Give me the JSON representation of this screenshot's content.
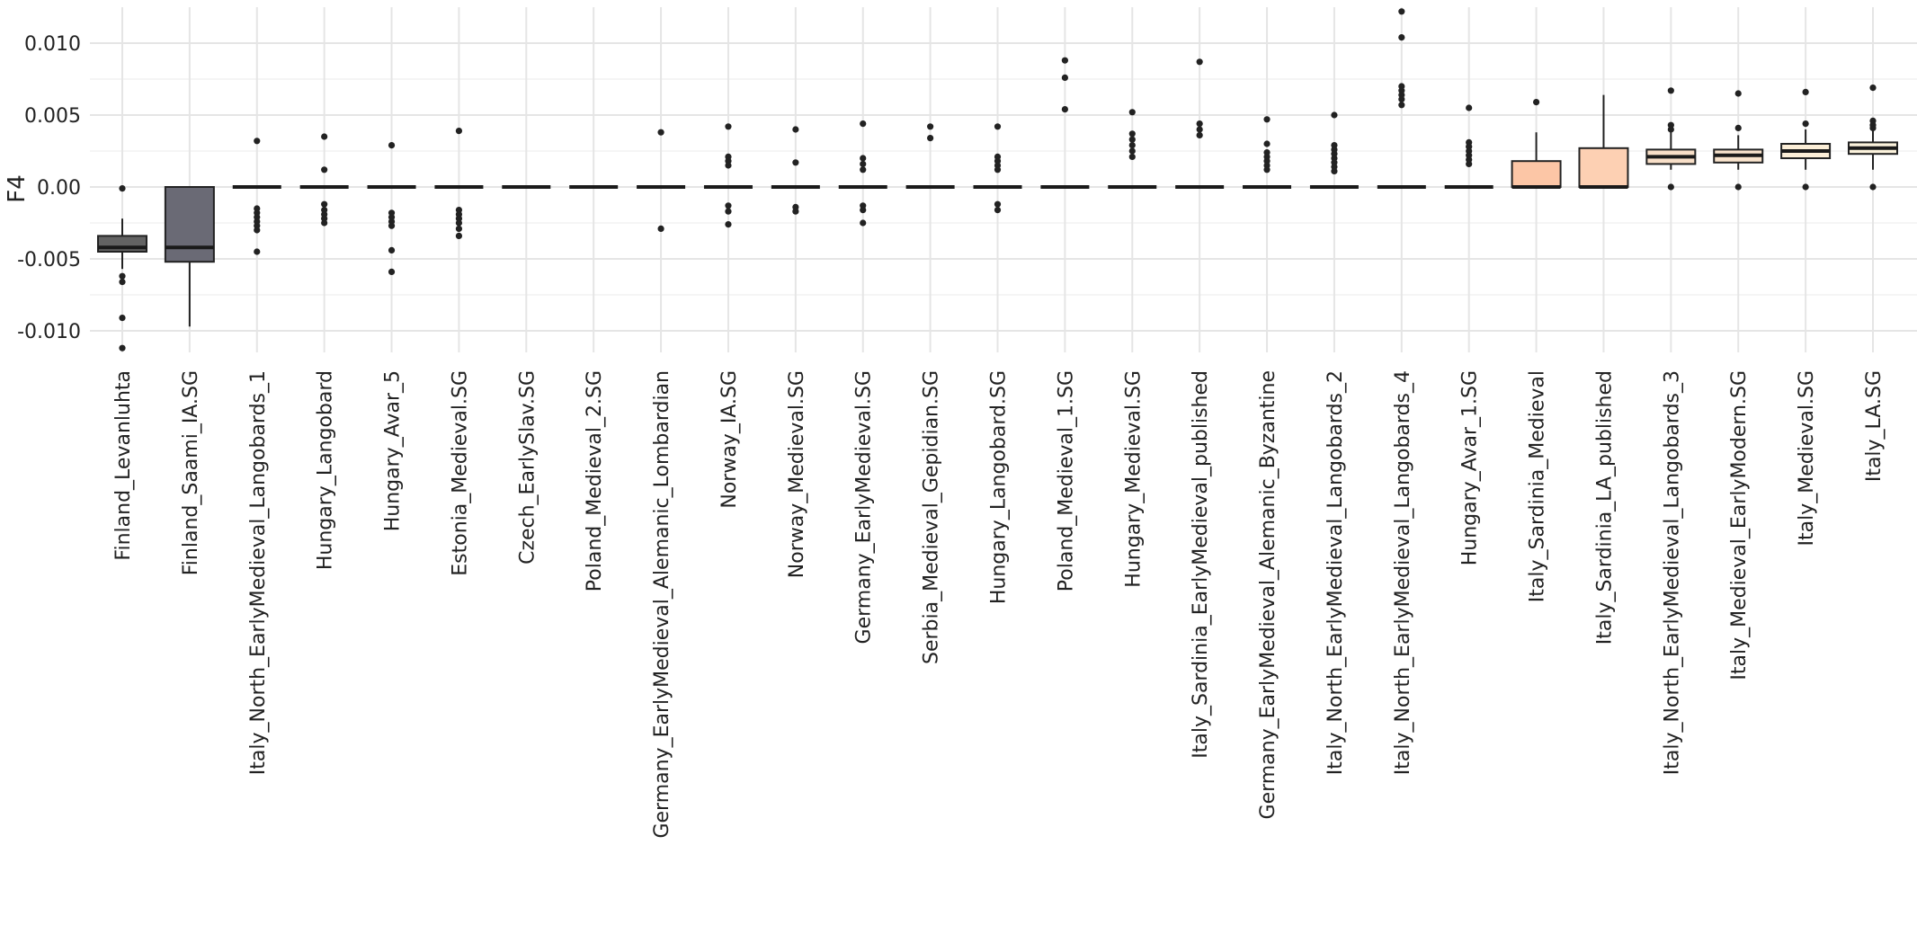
{
  "chart_data": {
    "type": "boxplot",
    "title": "",
    "xlabel": "",
    "ylabel": "F4",
    "ylim": [
      -0.0115,
      0.0125
    ],
    "yticks": [
      -0.01,
      -0.005,
      0.0,
      0.005,
      0.01
    ],
    "ytick_labels": [
      "-0.010",
      "-0.005",
      "0.00",
      "0.005",
      "0.010"
    ],
    "grid": true,
    "legend": "none",
    "categories": [
      "Finland_Levanluhta",
      "Finland_Saami_IA.SG",
      "Italy_North_EarlyMedieval_Langobards_1",
      "Hungary_Langobard",
      "Hungary_Avar_5",
      "Estonia_Medieval.SG",
      "Czech_EarlySlav.SG",
      "Poland_Medieval_2.SG",
      "Germany_EarlyMedieval_Alemanic_Lombardian",
      "Norway_IA.SG",
      "Norway_Medieval.SG",
      "Germany_EarlyMedieval.SG",
      "Serbia_Medieval_Gepidian.SG",
      "Hungary_Langobard.SG",
      "Poland_Medieval_1.SG",
      "Hungary_Medieval.SG",
      "Italy_Sardinia_EarlyMedieval_published",
      "Germany_EarlyMedieval_Alemanic_Byzantine",
      "Italy_North_EarlyMedieval_Langobards_2",
      "Italy_North_EarlyMedieval_Langobards_4",
      "Hungary_Avar_1.SG",
      "Italy_Sardinia_Medieval",
      "Italy_Sardinia_LA_published",
      "Italy_North_EarlyMedieval_Langobards_3",
      "Italy_Medieval_EarlyModern.SG",
      "Italy_Medieval.SG",
      "Italy_LA.SG"
    ],
    "boxes": [
      {
        "color": "#636363",
        "low": -0.0057,
        "q1": -0.0045,
        "median": -0.0042,
        "q3": -0.0034,
        "high": -0.0022,
        "outliers": [
          -0.0001,
          -0.0062,
          -0.0066,
          -0.0091,
          -0.0112
        ]
      },
      {
        "color": "#6a6a75",
        "low": -0.0097,
        "q1": -0.0052,
        "median": -0.0042,
        "q3": 0.0,
        "high": 0.0,
        "outliers": []
      },
      {
        "color": "#222222",
        "low": 0.0,
        "q1": 0.0,
        "median": 0.0,
        "q3": 0.0,
        "high": 0.0,
        "outliers": [
          0.0032,
          -0.0015,
          -0.0018,
          -0.0021,
          -0.0024,
          -0.0027,
          -0.003,
          -0.0045
        ]
      },
      {
        "color": "#222222",
        "low": 0.0,
        "q1": 0.0,
        "median": 0.0,
        "q3": 0.0,
        "high": 0.0,
        "outliers": [
          0.0035,
          0.0012,
          -0.0012,
          -0.0016,
          -0.0019,
          -0.0022,
          -0.0025
        ]
      },
      {
        "color": "#222222",
        "low": 0.0,
        "q1": 0.0,
        "median": 0.0,
        "q3": 0.0,
        "high": 0.0,
        "outliers": [
          0.0029,
          -0.0018,
          -0.0021,
          -0.0024,
          -0.0027,
          -0.0044,
          -0.0059
        ]
      },
      {
        "color": "#222222",
        "low": 0.0,
        "q1": 0.0,
        "median": 0.0,
        "q3": 0.0,
        "high": 0.0,
        "outliers": [
          0.0039,
          -0.0016,
          -0.0019,
          -0.0022,
          -0.0025,
          -0.0029,
          -0.0034
        ]
      },
      {
        "color": "#222222",
        "low": 0.0,
        "q1": 0.0,
        "median": 0.0,
        "q3": 0.0,
        "high": 0.0,
        "outliers": []
      },
      {
        "color": "#222222",
        "low": 0.0,
        "q1": 0.0,
        "median": 0.0,
        "q3": 0.0,
        "high": 0.0,
        "outliers": []
      },
      {
        "color": "#222222",
        "low": 0.0,
        "q1": 0.0,
        "median": 0.0,
        "q3": 0.0,
        "high": 0.0,
        "outliers": [
          0.0038,
          -0.0029
        ]
      },
      {
        "color": "#222222",
        "low": 0.0,
        "q1": 0.0,
        "median": 0.0,
        "q3": 0.0,
        "high": 0.0,
        "outliers": [
          0.0042,
          0.0021,
          0.0018,
          0.0015,
          -0.0013,
          -0.0017,
          -0.0026
        ]
      },
      {
        "color": "#222222",
        "low": 0.0,
        "q1": 0.0,
        "median": 0.0,
        "q3": 0.0,
        "high": 0.0,
        "outliers": [
          0.004,
          0.0017,
          -0.0014,
          -0.0017
        ]
      },
      {
        "color": "#222222",
        "low": 0.0,
        "q1": 0.0,
        "median": 0.0,
        "q3": 0.0,
        "high": 0.0,
        "outliers": [
          0.0044,
          0.002,
          0.0016,
          0.0012,
          -0.0013,
          -0.0016,
          -0.0025
        ]
      },
      {
        "color": "#222222",
        "low": 0.0,
        "q1": 0.0,
        "median": 0.0,
        "q3": 0.0,
        "high": 0.0,
        "outliers": [
          0.0042,
          0.0034
        ]
      },
      {
        "color": "#222222",
        "low": 0.0,
        "q1": 0.0,
        "median": 0.0,
        "q3": 0.0,
        "high": 0.0,
        "outliers": [
          0.0042,
          0.0021,
          0.0018,
          0.0015,
          0.0012,
          -0.0012,
          -0.0016
        ]
      },
      {
        "color": "#222222",
        "low": 0.0,
        "q1": 0.0,
        "median": 0.0,
        "q3": 0.0,
        "high": 0.0,
        "outliers": [
          0.0088,
          0.0076,
          0.0054
        ]
      },
      {
        "color": "#222222",
        "low": 0.0,
        "q1": 0.0,
        "median": 0.0,
        "q3": 0.0,
        "high": 0.0,
        "outliers": [
          0.0052,
          0.0037,
          0.0033,
          0.0029,
          0.0025,
          0.0021
        ]
      },
      {
        "color": "#222222",
        "low": 0.0,
        "q1": 0.0,
        "median": 0.0,
        "q3": 0.0,
        "high": 0.0,
        "outliers": [
          0.0087,
          0.0044,
          0.004,
          0.0036
        ]
      },
      {
        "color": "#222222",
        "low": 0.0,
        "q1": 0.0,
        "median": 0.0,
        "q3": 0.0,
        "high": 0.0,
        "outliers": [
          0.0047,
          0.003,
          0.0024,
          0.0021,
          0.0018,
          0.0015,
          0.0012
        ]
      },
      {
        "color": "#222222",
        "low": 0.0,
        "q1": 0.0,
        "median": 0.0,
        "q3": 0.0,
        "high": 0.0,
        "outliers": [
          0.005,
          0.0029,
          0.0026,
          0.0023,
          0.002,
          0.0017,
          0.0014,
          0.0011
        ]
      },
      {
        "color": "#222222",
        "low": 0.0,
        "q1": 0.0,
        "median": 0.0,
        "q3": 0.0,
        "high": 0.0,
        "outliers": [
          0.0122,
          0.0104,
          0.007,
          0.0067,
          0.0064,
          0.0061,
          0.0057
        ]
      },
      {
        "color": "#222222",
        "low": 0.0,
        "q1": 0.0,
        "median": 0.0,
        "q3": 0.0,
        "high": 0.0,
        "outliers": [
          0.0055,
          0.0031,
          0.0028,
          0.0025,
          0.0022,
          0.0019,
          0.0016
        ]
      },
      {
        "color": "#fcc6a6",
        "low": 0.0,
        "q1": 0.0,
        "median": 0.0,
        "q3": 0.0018,
        "high": 0.0038,
        "outliers": [
          0.0059
        ]
      },
      {
        "color": "#fdd0b3",
        "low": 0.0,
        "q1": 0.0,
        "median": 0.0,
        "q3": 0.0027,
        "high": 0.0064,
        "outliers": []
      },
      {
        "color": "#f8dfc8",
        "low": 0.0012,
        "q1": 0.0016,
        "median": 0.0021,
        "q3": 0.0026,
        "high": 0.0038,
        "outliers": [
          0.0067,
          0.0043,
          0.004,
          0.0
        ]
      },
      {
        "color": "#f9e4cd",
        "low": 0.0012,
        "q1": 0.0017,
        "median": 0.0022,
        "q3": 0.0026,
        "high": 0.0036,
        "outliers": [
          0.0065,
          0.0041,
          0.0
        ]
      },
      {
        "color": "#fbeed7",
        "low": 0.0012,
        "q1": 0.002,
        "median": 0.0025,
        "q3": 0.003,
        "high": 0.004,
        "outliers": [
          0.0066,
          0.0044,
          0.0
        ]
      },
      {
        "color": "#fcf3dd",
        "low": 0.0012,
        "q1": 0.0023,
        "median": 0.0027,
        "q3": 0.0031,
        "high": 0.0041,
        "outliers": [
          0.0069,
          0.0046,
          0.0043,
          0.0041,
          0.0
        ]
      }
    ]
  }
}
